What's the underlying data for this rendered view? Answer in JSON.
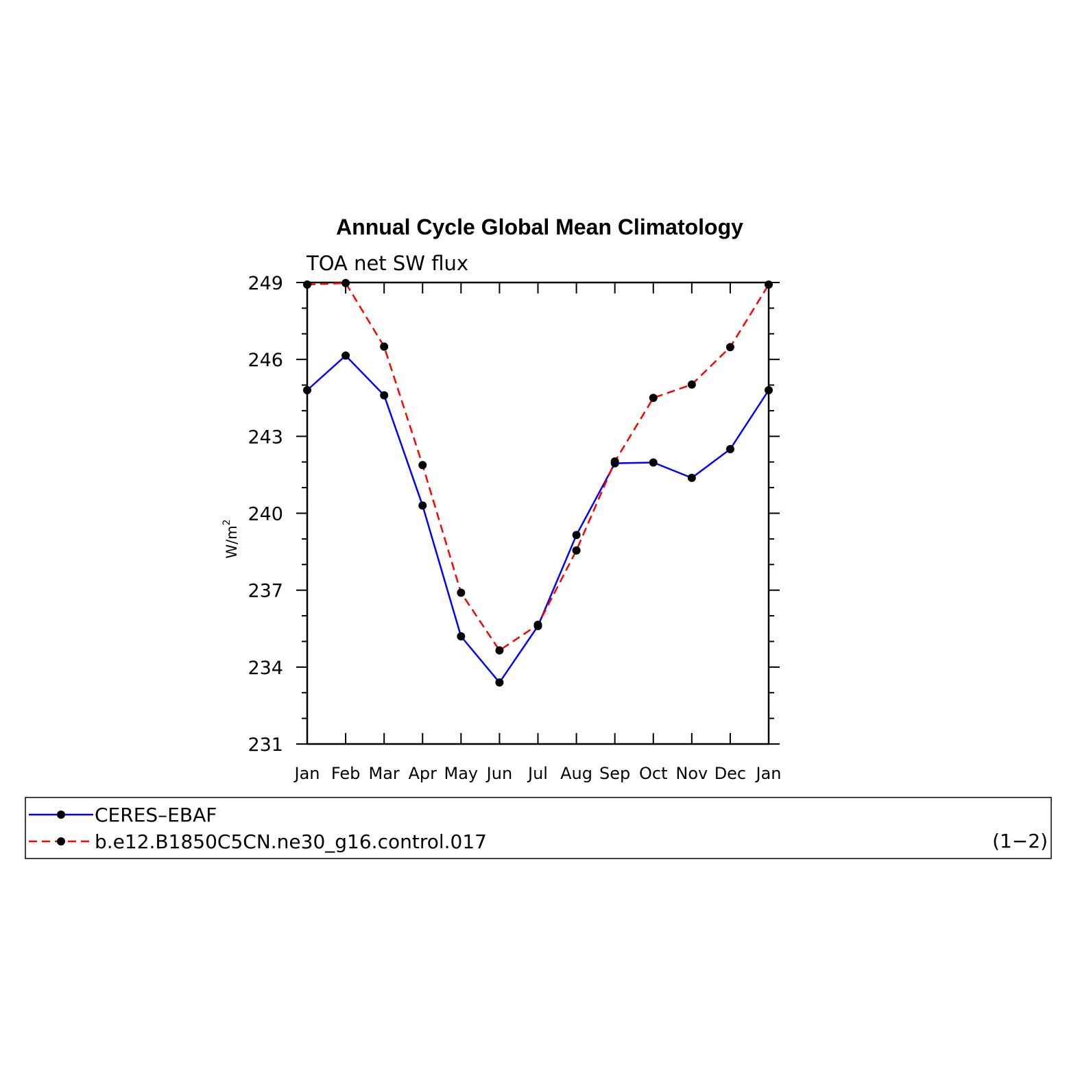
{
  "chart_data": {
    "type": "line",
    "title": "Annual Cycle Global Mean Climatology",
    "subtitle": "TOA net SW flux",
    "ylabel": "W/m",
    "ylabel_superscript": "2",
    "ylim": [
      231,
      249
    ],
    "yticks": [
      231,
      234,
      237,
      240,
      243,
      246,
      249
    ],
    "categories": [
      "Jan",
      "Feb",
      "Mar",
      "Apr",
      "May",
      "Jun",
      "Jul",
      "Aug",
      "Sep",
      "Oct",
      "Nov",
      "Dec",
      "Jan"
    ],
    "grid": false,
    "legend_position": "bottom",
    "series": [
      {
        "name": "CERES–EBAF",
        "color": "#0000ff",
        "style": "solid",
        "marker": "circle",
        "values": [
          244.8,
          246.15,
          244.6,
          240.3,
          235.2,
          233.4,
          235.6,
          239.15,
          241.95,
          241.98,
          241.38,
          242.5,
          244.8
        ]
      },
      {
        "name": "b.e12.B1850C5CN.ne30_g16.control.017",
        "color": "#ff0000",
        "style": "dashed",
        "marker": "circle",
        "values": [
          248.92,
          248.98,
          246.5,
          241.88,
          236.9,
          234.65,
          235.65,
          238.55,
          242.02,
          244.5,
          245.02,
          246.48,
          248.92
        ]
      }
    ],
    "annotation": "(1−2)"
  }
}
